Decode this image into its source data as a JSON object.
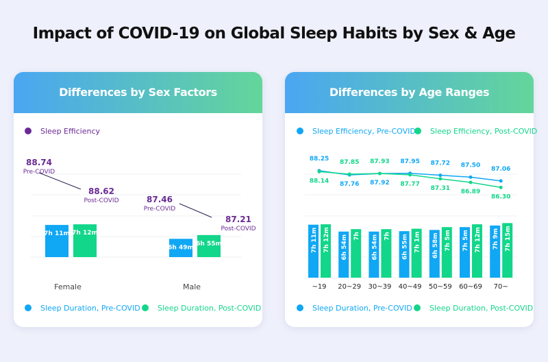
{
  "title": "Impact of COVID-19 on Global Sleep Habits by Sex & Age",
  "colors": {
    "pre": "#10a7f5",
    "post": "#12d68a",
    "efficiency": "#6a2a94"
  },
  "chart_data": [
    {
      "type": "bar",
      "title": "Differences by Sex Factors",
      "categories": [
        "Female",
        "Male"
      ],
      "series": [
        {
          "name": "Sleep Duration, Pre-COVID",
          "values": [
            "7h 11m",
            "6h 49m"
          ],
          "minutes": [
            431,
            409
          ]
        },
        {
          "name": "Sleep Duration, Post-COVID",
          "values": [
            "7h 12m",
            "6h 55m"
          ],
          "minutes": [
            432,
            415
          ]
        }
      ],
      "line_series": {
        "name": "Sleep Efficiency",
        "pre_label": "Pre-COVID",
        "post_label": "Post-COVID",
        "pre": [
          88.74,
          87.46
        ],
        "post": [
          88.62,
          87.21
        ],
        "labels_pre": [
          "88.74",
          "87.46"
        ],
        "labels_post": [
          "88.62",
          "87.21"
        ]
      },
      "legend": "bottom"
    },
    {
      "type": "bar",
      "title": "Differences by Age Ranges",
      "categories": [
        "~19",
        "20~29",
        "30~39",
        "40~49",
        "50~59",
        "60~69",
        "70~"
      ],
      "series": [
        {
          "name": "Sleep Duration, Pre-COVID",
          "values": [
            "7h 11m",
            "6h 54m",
            "6h 54m",
            "6h 55m",
            "6h 58m",
            "7h 5m",
            "7h 9m"
          ],
          "minutes": [
            431,
            414,
            414,
            415,
            418,
            425,
            429
          ]
        },
        {
          "name": "Sleep Duration, Post-COVID",
          "values": [
            "7h 12m",
            "7h",
            "7h",
            "7h 1m",
            "7h 5m",
            "7h 12m",
            "7h 15m"
          ],
          "minutes": [
            432,
            420,
            420,
            421,
            425,
            432,
            435
          ]
        }
      ],
      "line_series": [
        {
          "name": "Sleep Efficiency, Pre-COVID",
          "values": [
            88.25,
            87.76,
            87.92,
            87.95,
            87.72,
            87.5,
            87.06
          ],
          "labels": [
            "88.25",
            "87.76",
            "87.92",
            "87.95",
            "87.72",
            "87.50",
            "87.06"
          ]
        },
        {
          "name": "Sleep Efficiency, Post-COVID",
          "values": [
            88.14,
            87.85,
            87.93,
            87.77,
            87.31,
            86.89,
            86.3
          ],
          "labels": [
            "88.14",
            "87.85",
            "87.93",
            "87.77",
            "87.31",
            "86.89",
            "86.30"
          ]
        }
      ],
      "legend": "top and bottom"
    }
  ]
}
